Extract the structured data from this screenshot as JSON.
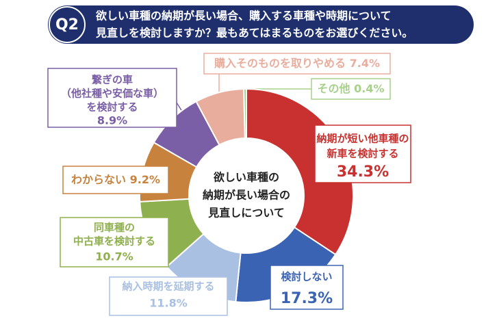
{
  "question": {
    "badge": "Q2",
    "lines": [
      "欲しい車種の納期が長い場合、購入する車種や時期について",
      "見直しを検討しますか？最もあてはまるものをお選びください。"
    ]
  },
  "chart_data": {
    "type": "donut",
    "center_text": [
      "欲しい車種の",
      "納期が長い場合の",
      "見直しについて"
    ],
    "categories": [
      [
        "納期が短い他車種の",
        "新車を検討する"
      ],
      [
        "検討しない"
      ],
      [
        "納入時期を延期する"
      ],
      [
        "同車種の",
        "中古車を検討する"
      ],
      [
        "わからない"
      ],
      [
        "繋ぎの車",
        "（他社種や安価な車）",
        "を検討する"
      ],
      [
        "購入そのものを取りやめる"
      ],
      [
        "その他"
      ]
    ],
    "values": [
      34.3,
      17.3,
      11.8,
      10.7,
      9.2,
      8.9,
      7.4,
      0.4
    ],
    "value_labels": [
      "34.3%",
      "17.3%",
      "11.8%",
      "10.7%",
      "9.2%",
      "8.9%",
      "7.4%",
      "0.4%"
    ],
    "colors": [
      "#c8312f",
      "#3b63b3",
      "#a9c0e2",
      "#8fb04e",
      "#c7823e",
      "#7a5ea6",
      "#e9ad9e",
      "#a8d08d"
    ]
  }
}
